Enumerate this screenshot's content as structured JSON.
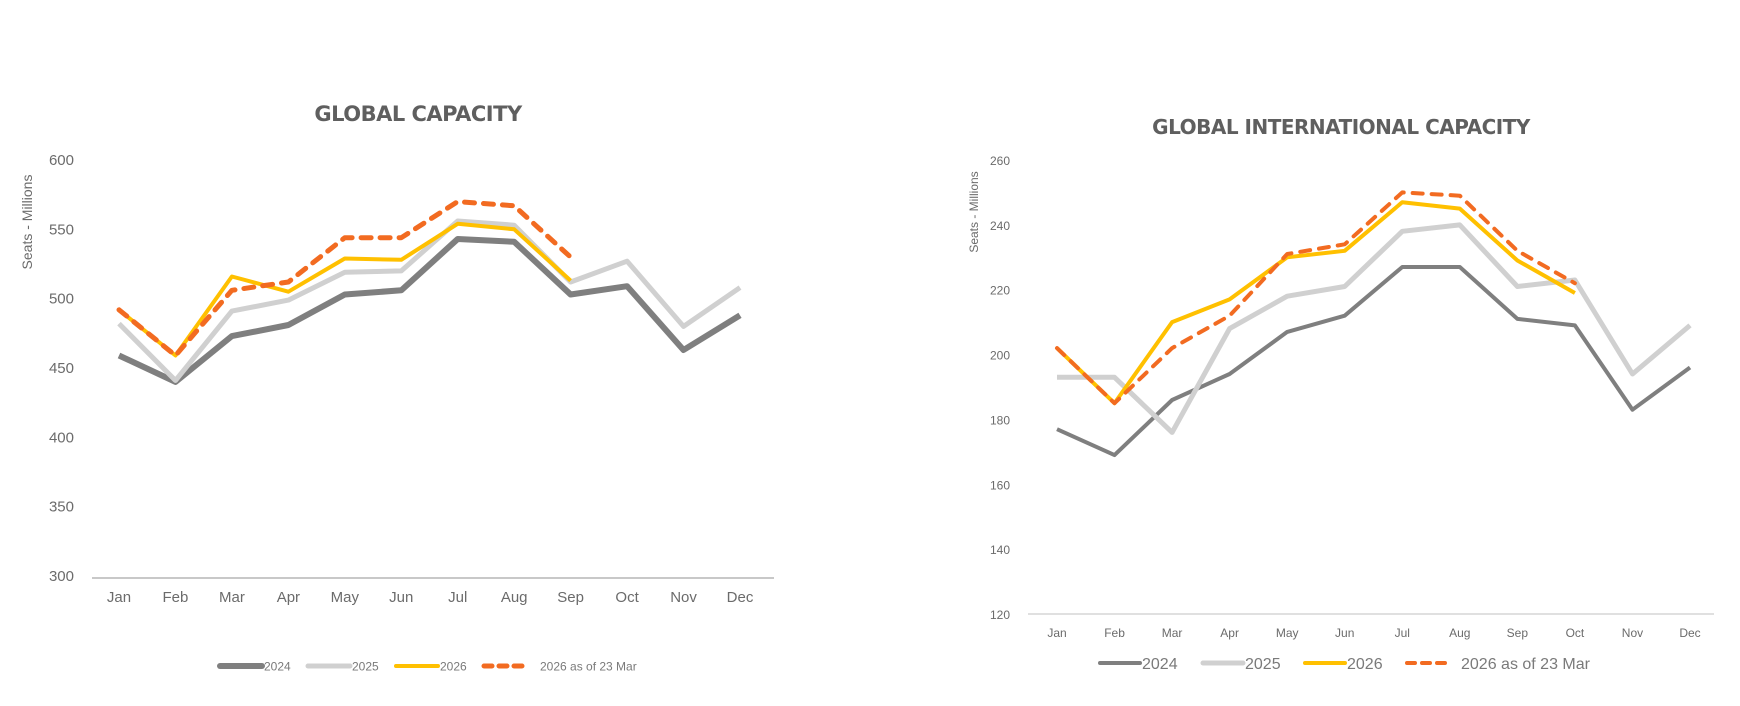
{
  "chart_data": [
    {
      "type": "line",
      "title": "GLOBAL CAPACITY",
      "xlabel": "",
      "ylabel": "Seats - Millions",
      "ylim": [
        300,
        600
      ],
      "yticks": [
        300,
        350,
        400,
        450,
        500,
        550,
        600
      ],
      "categories": [
        "Jan",
        "Feb",
        "Mar",
        "Apr",
        "May",
        "Jun",
        "Jul",
        "Aug",
        "Sep",
        "Oct",
        "Nov",
        "Dec"
      ],
      "grid": false,
      "legend": "bottom",
      "series": [
        {
          "name": "2024",
          "color": "#7f7f7f",
          "dash": false,
          "values": [
            459,
            440,
            473,
            481,
            503,
            506,
            543,
            541,
            503,
            509,
            463,
            488
          ]
        },
        {
          "name": "2025",
          "color": "#d0d0d0",
          "dash": false,
          "values": [
            482,
            441,
            491,
            499,
            519,
            520,
            556,
            553,
            512,
            527,
            480,
            508
          ]
        },
        {
          "name": "2026",
          "color": "#ffc000",
          "dash": false,
          "values": [
            492,
            459,
            516,
            505,
            529,
            528,
            554,
            550,
            513,
            null,
            null,
            null
          ]
        },
        {
          "name": "2026 as of 23 Mar",
          "color": "#f26b21",
          "dash": true,
          "values": [
            492,
            459,
            506,
            512,
            544,
            544,
            570,
            567,
            530,
            null,
            null,
            null
          ]
        }
      ]
    },
    {
      "type": "line",
      "title": "GLOBAL INTERNATIONAL CAPACITY",
      "xlabel": "",
      "ylabel": "Seats - Millions",
      "ylim": [
        120,
        260
      ],
      "yticks": [
        120,
        140,
        160,
        180,
        200,
        220,
        240,
        260
      ],
      "categories": [
        "Jan",
        "Feb",
        "Mar",
        "Apr",
        "May",
        "Jun",
        "Jul",
        "Aug",
        "Sep",
        "Oct",
        "Nov",
        "Dec"
      ],
      "grid": false,
      "legend": "bottom",
      "series": [
        {
          "name": "2024",
          "color": "#7f7f7f",
          "dash": false,
          "values": [
            177,
            169,
            186,
            194,
            207,
            212,
            227,
            227,
            211,
            209,
            183,
            196
          ]
        },
        {
          "name": "2025",
          "color": "#d0d0d0",
          "dash": false,
          "values": [
            193,
            193,
            176,
            208,
            218,
            221,
            238,
            240,
            221,
            223,
            194,
            209
          ]
        },
        {
          "name": "2026",
          "color": "#ffc000",
          "dash": false,
          "values": [
            202,
            185,
            210,
            217,
            230,
            232,
            247,
            245,
            229,
            219,
            null,
            null
          ]
        },
        {
          "name": "2026 as of 23 Mar",
          "color": "#f26b21",
          "dash": true,
          "values": [
            202,
            185,
            202,
            212,
            231,
            234,
            250,
            249,
            232,
            222,
            null,
            null
          ]
        }
      ]
    }
  ]
}
